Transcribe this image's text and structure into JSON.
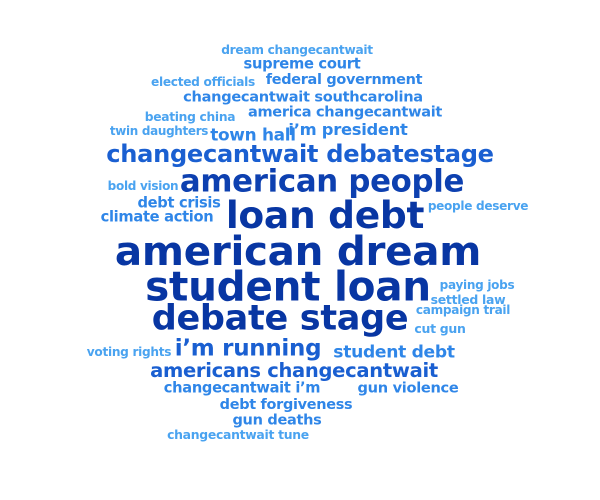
{
  "words": [
    {
      "text": "dream changecantwait",
      "size": 7,
      "color": "#4aa3f0"
    },
    {
      "text": "supreme court",
      "size": 9,
      "color": "#2f86e8"
    },
    {
      "text": "elected officials",
      "size": 8,
      "color": "#4aa3f0"
    },
    {
      "text": "federal government",
      "size": 9,
      "color": "#2f86e8"
    },
    {
      "text": "changecantwait southcarolina",
      "size": 9,
      "color": "#2f86e8"
    },
    {
      "text": "beating china",
      "size": 7,
      "color": "#4aa3f0"
    },
    {
      "text": "america changecantwait",
      "size": 9,
      "color": "#2f86e8"
    },
    {
      "text": "twin daughters",
      "size": 7,
      "color": "#4aa3f0"
    },
    {
      "text": "town hall",
      "size": 10,
      "color": "#2f86e8"
    },
    {
      "text": "i’m president",
      "size": 10,
      "color": "#2f86e8"
    },
    {
      "text": "changecantwait debatestage",
      "size": 14,
      "color": "#1a5fd1"
    },
    {
      "text": "bold vision",
      "size": 7,
      "color": "#4aa3f0"
    },
    {
      "text": "american people",
      "size": 21,
      "color": "#0d40b0"
    },
    {
      "text": "debt crisis",
      "size": 9,
      "color": "#2f86e8"
    },
    {
      "text": "people deserve",
      "size": 7,
      "color": "#4aa3f0"
    },
    {
      "text": "climate action",
      "size": 9,
      "color": "#2f86e8"
    },
    {
      "text": "loan debt",
      "size": 30,
      "color": "#0836a3"
    },
    {
      "text": "american dream",
      "size": 31,
      "color": "#0836a3"
    },
    {
      "text": "student loan",
      "size": 32,
      "color": "#0836a3"
    },
    {
      "text": "paying jobs",
      "size": 7,
      "color": "#4aa3f0"
    },
    {
      "text": "settled law",
      "size": 7,
      "color": "#4aa3f0"
    },
    {
      "text": "debate stage",
      "size": 28,
      "color": "#0836a3"
    },
    {
      "text": "campaign trail",
      "size": 7,
      "color": "#4aa3f0"
    },
    {
      "text": "cut gun",
      "size": 7,
      "color": "#4aa3f0"
    },
    {
      "text": "voting rights",
      "size": 7,
      "color": "#4aa3f0"
    },
    {
      "text": "i’m running",
      "size": 16,
      "color": "#1a5fd1"
    },
    {
      "text": "student debt",
      "size": 11,
      "color": "#2f86e8"
    },
    {
      "text": "americans changecantwait",
      "size": 13,
      "color": "#1a5fd1"
    },
    {
      "text": "changecantwait i’m",
      "size": 9,
      "color": "#2f86e8"
    },
    {
      "text": "gun violence",
      "size": 9,
      "color": "#2f86e8"
    },
    {
      "text": "debt forgiveness",
      "size": 9,
      "color": "#2f86e8"
    },
    {
      "text": "gun deaths",
      "size": 9,
      "color": "#2f86e8"
    },
    {
      "text": "changecantwait tune",
      "size": 7,
      "color": "#4aa3f0"
    }
  ]
}
